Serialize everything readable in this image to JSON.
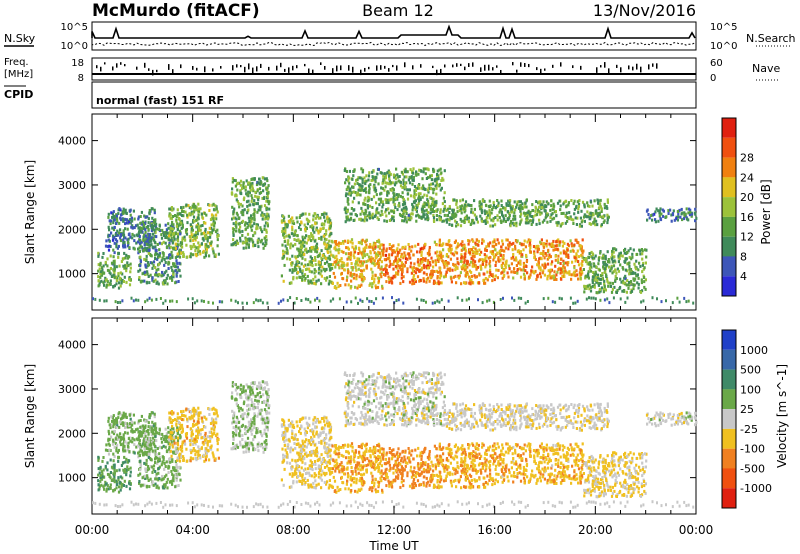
{
  "header": {
    "station": "McMurdo (fitACF)",
    "beam": "Beam 12",
    "date": "13/Nov/2016"
  },
  "strip_labels": {
    "nsky": "N.Sky",
    "nsearch": "N.Search",
    "freq_line1": "Freq.",
    "freq_line2": "[MHz]",
    "nave": "Nave",
    "cpid": "CPID",
    "sky_tick_hi": "10^5",
    "sky_tick_lo": "10^0",
    "freq_tick_hi": "18",
    "freq_tick_lo": "8",
    "nave_tick_hi": "60",
    "nave_tick_lo": "0",
    "mode": "normal (fast) 151 RF"
  },
  "colors": {
    "power_scale": [
      "#2a2ad6",
      "#3d56b8",
      "#3f8a5a",
      "#5aa040",
      "#9cc23a",
      "#e0c020",
      "#f08010",
      "#f05010",
      "#e02010"
    ],
    "velocity_scale": [
      "#2040c8",
      "#3868a8",
      "#3f8a68",
      "#6aa848",
      "#c8c8c8",
      "#f0c020",
      "#f08020",
      "#f05010",
      "#e02010"
    ]
  },
  "chart_data": [
    {
      "type": "heatmap",
      "title": "",
      "xlabel": "Time UT",
      "ylabel": "Slant Range [km]",
      "x_ticks": [
        "00:00",
        "04:00",
        "08:00",
        "12:00",
        "16:00",
        "20:00",
        "00:00"
      ],
      "y_ticks": [
        1000,
        2000,
        3000,
        4000
      ],
      "xlim": [
        0,
        24
      ],
      "ylim": [
        180,
        4600
      ],
      "colorbar": {
        "label": "Power [dB]",
        "ticks": [
          "4",
          "8",
          "12",
          "16",
          "20",
          "24",
          "28"
        ]
      },
      "regions": [
        {
          "t": [
            0.2,
            1.5
          ],
          "r": [
            700,
            1500
          ],
          "value": 12
        },
        {
          "t": [
            0.5,
            2.5
          ],
          "r": [
            1500,
            2500
          ],
          "value": 8
        },
        {
          "t": [
            1.8,
            3.5
          ],
          "r": [
            800,
            2200
          ],
          "value": 10
        },
        {
          "t": [
            3.0,
            5.0
          ],
          "r": [
            1400,
            2600
          ],
          "value": 14
        },
        {
          "t": [
            5.5,
            7.0
          ],
          "r": [
            1600,
            3200
          ],
          "value": 12
        },
        {
          "t": [
            7.5,
            9.5
          ],
          "r": [
            800,
            2400
          ],
          "value": 14
        },
        {
          "t": [
            9.5,
            11.5
          ],
          "r": [
            700,
            1800
          ],
          "value": 20
        },
        {
          "t": [
            11.5,
            13.5
          ],
          "r": [
            800,
            1700
          ],
          "value": 24
        },
        {
          "t": [
            13.5,
            16.0
          ],
          "r": [
            800,
            1800
          ],
          "value": 22
        },
        {
          "t": [
            16.0,
            19.5
          ],
          "r": [
            900,
            1800
          ],
          "value": 22
        },
        {
          "t": [
            10.0,
            14.0
          ],
          "r": [
            2200,
            3400
          ],
          "value": 12
        },
        {
          "t": [
            14.0,
            20.5
          ],
          "r": [
            2100,
            2700
          ],
          "value": 12
        },
        {
          "t": [
            19.5,
            22.0
          ],
          "r": [
            600,
            1600
          ],
          "value": 12
        },
        {
          "t": [
            22.0,
            24.0
          ],
          "r": [
            2200,
            2500
          ],
          "value": 8
        }
      ]
    },
    {
      "type": "heatmap",
      "title": "",
      "xlabel": "Time UT",
      "ylabel": "Slant Range [km]",
      "x_ticks": [
        "00:00",
        "04:00",
        "08:00",
        "12:00",
        "16:00",
        "20:00",
        "00:00"
      ],
      "y_ticks": [
        1000,
        2000,
        3000,
        4000
      ],
      "xlim": [
        0,
        24
      ],
      "ylim": [
        180,
        4600
      ],
      "colorbar": {
        "label": "Velocity [m s^-1]",
        "ticks": [
          "1000",
          "500",
          "100",
          "25",
          "-25",
          "-100",
          "-500",
          "-1000"
        ]
      },
      "regions": [
        {
          "t": [
            0.2,
            1.5
          ],
          "r": [
            700,
            1500
          ],
          "value": 300
        },
        {
          "t": [
            0.5,
            2.5
          ],
          "r": [
            1500,
            2500
          ],
          "value": 200
        },
        {
          "t": [
            1.8,
            3.5
          ],
          "r": [
            800,
            2200
          ],
          "value": 200
        },
        {
          "t": [
            3.0,
            5.0
          ],
          "r": [
            1400,
            2600
          ],
          "value": -200
        },
        {
          "t": [
            5.5,
            7.0
          ],
          "r": [
            1600,
            3200
          ],
          "value": 100
        },
        {
          "t": [
            7.5,
            9.5
          ],
          "r": [
            800,
            2400
          ],
          "value": -150
        },
        {
          "t": [
            9.5,
            11.5
          ],
          "r": [
            700,
            1800
          ],
          "value": -300
        },
        {
          "t": [
            11.5,
            13.5
          ],
          "r": [
            800,
            1700
          ],
          "value": -400
        },
        {
          "t": [
            13.5,
            16.0
          ],
          "r": [
            800,
            1800
          ],
          "value": -300
        },
        {
          "t": [
            16.0,
            19.5
          ],
          "r": [
            900,
            1800
          ],
          "value": -250
        },
        {
          "t": [
            10.0,
            14.0
          ],
          "r": [
            2200,
            3400
          ],
          "value": 0
        },
        {
          "t": [
            14.0,
            20.5
          ],
          "r": [
            2100,
            2700
          ],
          "value": -50
        },
        {
          "t": [
            19.5,
            22.0
          ],
          "r": [
            600,
            1600
          ],
          "value": -150
        },
        {
          "t": [
            22.0,
            24.0
          ],
          "r": [
            2200,
            2500
          ],
          "value": 0
        }
      ]
    }
  ]
}
